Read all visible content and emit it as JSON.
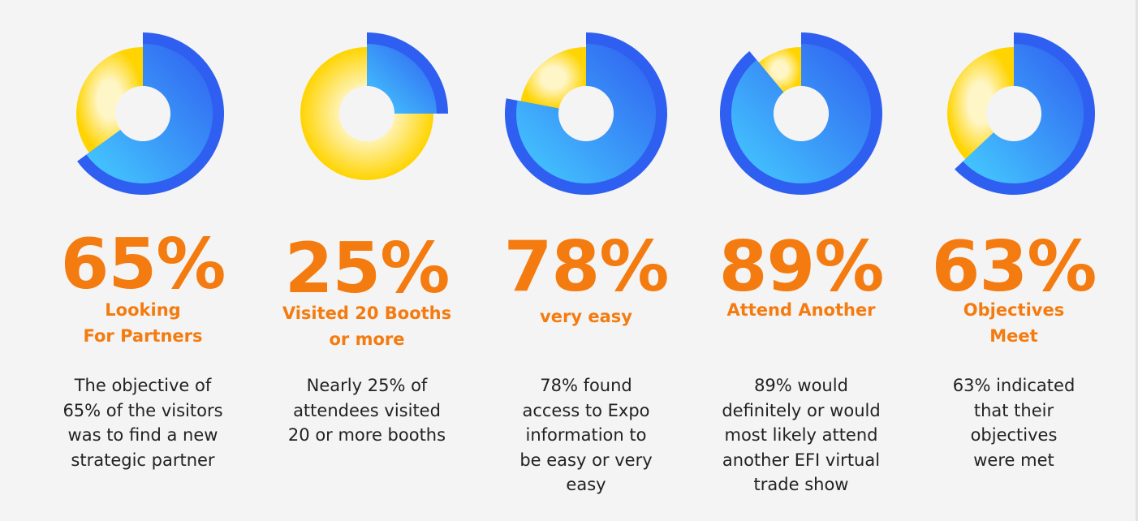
{
  "colors": {
    "background": "#f4f4f4",
    "accent_orange": "#f47b0f",
    "blue_dark": "#2f5ff0",
    "blue_light": "#45ccff",
    "yellow": "#ffd400",
    "yellow_light": "#fff6c8"
  },
  "chart_data": [
    {
      "type": "pie",
      "value_label": "65%",
      "values": [
        65,
        35
      ],
      "label": "Looking\nFor Partners",
      "description": "The objective of\n65% of the visitors\nwas to find a new\nstrategic partner"
    },
    {
      "type": "pie",
      "value_label": "25%",
      "values": [
        25,
        75
      ],
      "label": "Visited 20 Booths\nor more",
      "description": "Nearly 25% of\nattendees visited\n20 or more booths"
    },
    {
      "type": "pie",
      "value_label": "78%",
      "values": [
        78,
        22
      ],
      "label": "very easy",
      "description": "78% found\naccess to Expo\ninformation to\nbe easy or very\neasy"
    },
    {
      "type": "pie",
      "value_label": "89%",
      "values": [
        89,
        11
      ],
      "label": "Attend Another",
      "description": "89% would\ndefinitely or would\nmost likely attend\nanother EFI virtual\ntrade show"
    },
    {
      "type": "pie",
      "value_label": "63%",
      "values": [
        63,
        37
      ],
      "label": "Objectives\nMeet",
      "description": "63% indicated\nthat their\nobjectives\nwere met"
    }
  ]
}
